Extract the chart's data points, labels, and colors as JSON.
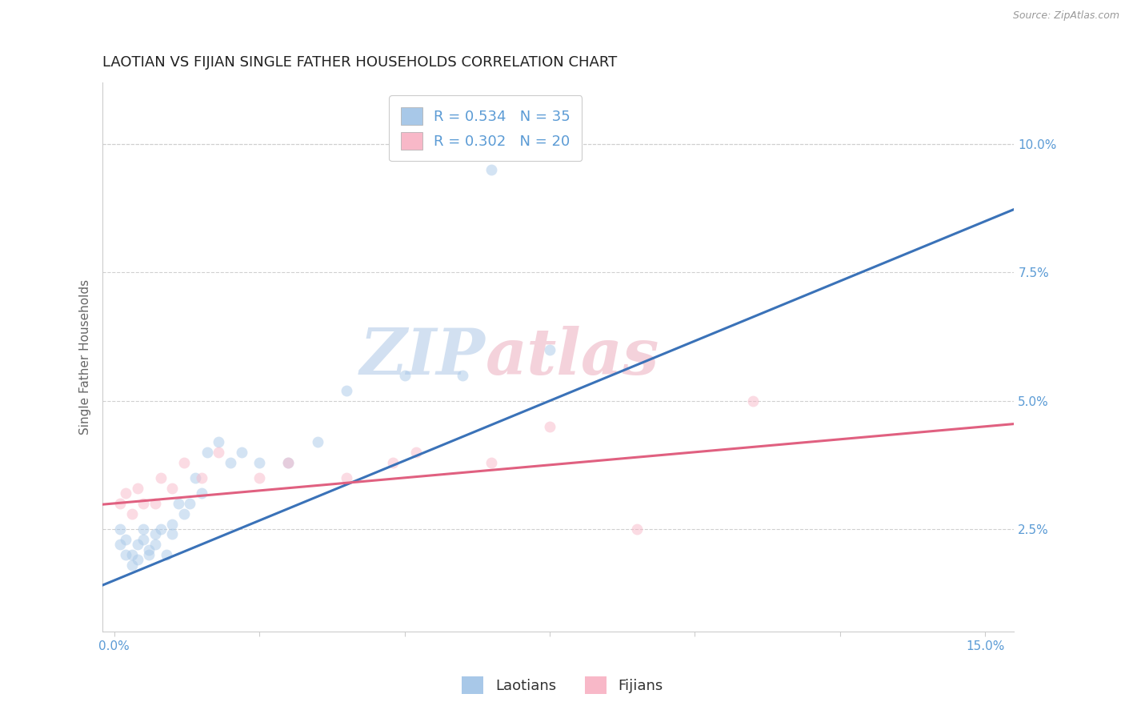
{
  "title": "LAOTIAN VS FIJIAN SINGLE FATHER HOUSEHOLDS CORRELATION CHART",
  "source_text": "Source: ZipAtlas.com",
  "ylabel": "Single Father Households",
  "watermark": "ZIPatlas",
  "xlim": [
    -0.002,
    0.155
  ],
  "ylim": [
    0.005,
    0.112
  ],
  "xticks": [
    0.0,
    0.025,
    0.05,
    0.075,
    0.1,
    0.125,
    0.15
  ],
  "xtick_labels": [
    "0.0%",
    "",
    "",
    "",
    "",
    "",
    "15.0%"
  ],
  "yticks_right": [
    0.025,
    0.05,
    0.075,
    0.1
  ],
  "ytick_labels_right": [
    "2.5%",
    "5.0%",
    "7.5%",
    "10.0%"
  ],
  "laotian_color": "#a8c8e8",
  "fijian_color": "#f8b8c8",
  "laotian_line_color": "#3a72b8",
  "fijian_line_color": "#e06080",
  "R_laotian": 0.534,
  "N_laotian": 35,
  "R_fijian": 0.302,
  "N_fijian": 20,
  "laotian_scatter_x": [
    0.001,
    0.001,
    0.002,
    0.002,
    0.003,
    0.003,
    0.004,
    0.004,
    0.005,
    0.005,
    0.006,
    0.006,
    0.007,
    0.007,
    0.008,
    0.009,
    0.01,
    0.01,
    0.011,
    0.012,
    0.013,
    0.014,
    0.015,
    0.016,
    0.018,
    0.02,
    0.022,
    0.025,
    0.03,
    0.035,
    0.04,
    0.05,
    0.06,
    0.075,
    0.065
  ],
  "laotian_scatter_y": [
    0.025,
    0.022,
    0.023,
    0.02,
    0.018,
    0.02,
    0.022,
    0.019,
    0.023,
    0.025,
    0.02,
    0.021,
    0.024,
    0.022,
    0.025,
    0.02,
    0.024,
    0.026,
    0.03,
    0.028,
    0.03,
    0.035,
    0.032,
    0.04,
    0.042,
    0.038,
    0.04,
    0.038,
    0.038,
    0.042,
    0.052,
    0.055,
    0.055,
    0.06,
    0.095
  ],
  "fijian_scatter_x": [
    0.001,
    0.002,
    0.003,
    0.004,
    0.005,
    0.007,
    0.008,
    0.01,
    0.012,
    0.015,
    0.018,
    0.025,
    0.03,
    0.04,
    0.048,
    0.052,
    0.065,
    0.075,
    0.09,
    0.11
  ],
  "fijian_scatter_y": [
    0.03,
    0.032,
    0.028,
    0.033,
    0.03,
    0.03,
    0.035,
    0.033,
    0.038,
    0.035,
    0.04,
    0.035,
    0.038,
    0.035,
    0.038,
    0.04,
    0.038,
    0.045,
    0.025,
    0.05
  ],
  "background_color": "#ffffff",
  "grid_color": "#d0d0d0",
  "title_fontsize": 13,
  "axis_label_fontsize": 11,
  "tick_fontsize": 11,
  "legend_fontsize": 13,
  "scatter_alpha": 0.5,
  "scatter_size": 100,
  "line_width": 2.2
}
